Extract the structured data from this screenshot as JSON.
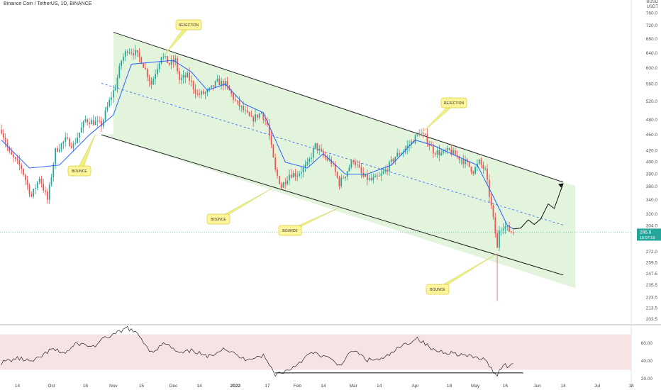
{
  "header": {
    "title": "Binance Coin / TetherUS, 1D, BINANCE",
    "currency_top": "BUSD",
    "currency": "USDT"
  },
  "price_axis": {
    "ticks": [
      "760.0",
      "720.0",
      "680.0",
      "640.0",
      "600.0",
      "560.0",
      "520.0",
      "480.0",
      "450.0",
      "420.0",
      "400.0",
      "380.0",
      "360.0",
      "340.0",
      "320.0",
      "304.0",
      "295.9",
      "272.0",
      "259.5",
      "247.5",
      "235.5",
      "223.5",
      "213.5",
      "203.5"
    ],
    "last_price": "295.9",
    "countdown": "16:07:18",
    "colors": {
      "last_price_bg": "#26a69a",
      "last_price_text": "#ffffff"
    }
  },
  "rsi_axis": {
    "ticks": [
      "60.00",
      "40.00",
      "20.00"
    ]
  },
  "time_axis": {
    "ticks": [
      "14",
      "Oct",
      "18",
      "Nov",
      "15",
      "Dec",
      "14",
      "2022",
      "17",
      "Feb",
      "14",
      "Mar",
      "14",
      "Apr",
      "18",
      "May",
      "16",
      "Jun",
      "14",
      "Jul",
      "18"
    ]
  },
  "annotations": [
    {
      "label": "REJECTION",
      "kind": "rejection"
    },
    {
      "label": "REJECTION",
      "kind": "rejection"
    },
    {
      "label": "BOUNCE",
      "kind": "bounce"
    },
    {
      "label": "BOUNCE",
      "kind": "bounce"
    },
    {
      "label": "BOUNCE",
      "kind": "bounce"
    },
    {
      "label": "BOUNCE",
      "kind": "bounce"
    }
  ],
  "colors": {
    "up": "#26a69a",
    "down": "#ef5350",
    "ma": "#2962ff",
    "channel_fill": "#e3f4dd",
    "rsi_band": "#f6e4e4",
    "label_fill": "#fff59a",
    "label_stroke": "#d8cc40",
    "arrow_fill": "#eef27a"
  },
  "chart_data": {
    "type": "candlestick",
    "symbol": "BNB/USDT",
    "timeframe": "1D",
    "x": {
      "start": "2021-09-06",
      "end": "2022-07-18",
      "ticks": [
        {
          "label": "14",
          "date": "2021-09-14"
        },
        {
          "label": "Oct",
          "date": "2021-10-01"
        },
        {
          "label": "18",
          "date": "2021-10-18"
        },
        {
          "label": "Nov",
          "date": "2021-11-01"
        },
        {
          "label": "15",
          "date": "2021-11-15"
        },
        {
          "label": "Dec",
          "date": "2021-12-01"
        },
        {
          "label": "14",
          "date": "2021-12-14"
        },
        {
          "label": "2022",
          "date": "2022-01-01"
        },
        {
          "label": "17",
          "date": "2022-01-17"
        },
        {
          "label": "Feb",
          "date": "2022-02-01"
        },
        {
          "label": "14",
          "date": "2022-02-14"
        },
        {
          "label": "Mar",
          "date": "2022-03-01"
        },
        {
          "label": "14",
          "date": "2022-03-14"
        },
        {
          "label": "Apr",
          "date": "2022-04-01"
        },
        {
          "label": "18",
          "date": "2022-04-18"
        },
        {
          "label": "May",
          "date": "2022-05-01"
        },
        {
          "label": "16",
          "date": "2022-05-16"
        },
        {
          "label": "Jun",
          "date": "2022-06-01"
        },
        {
          "label": "14",
          "date": "2022-06-14"
        },
        {
          "label": "Jul",
          "date": "2022-07-01"
        },
        {
          "label": "18",
          "date": "2022-07-18"
        }
      ]
    },
    "y_scale": "log",
    "ylim": [
      200,
      790
    ],
    "price_anchors": [
      {
        "date": "2021-09-06",
        "price": 460
      },
      {
        "date": "2021-09-10",
        "price": 415
      },
      {
        "date": "2021-09-16",
        "price": 390
      },
      {
        "date": "2021-09-21",
        "price": 345
      },
      {
        "date": "2021-09-25",
        "price": 375
      },
      {
        "date": "2021-09-29",
        "price": 340
      },
      {
        "date": "2021-10-03",
        "price": 420
      },
      {
        "date": "2021-10-08",
        "price": 440
      },
      {
        "date": "2021-10-12",
        "price": 430
      },
      {
        "date": "2021-10-18",
        "price": 480
      },
      {
        "date": "2021-10-22",
        "price": 475
      },
      {
        "date": "2021-10-26",
        "price": 470
      },
      {
        "date": "2021-10-30",
        "price": 520
      },
      {
        "date": "2021-11-02",
        "price": 555
      },
      {
        "date": "2021-11-05",
        "price": 620
      },
      {
        "date": "2021-11-08",
        "price": 650
      },
      {
        "date": "2021-11-12",
        "price": 640
      },
      {
        "date": "2021-11-15",
        "price": 620
      },
      {
        "date": "2021-11-20",
        "price": 560
      },
      {
        "date": "2021-11-25",
        "price": 635
      },
      {
        "date": "2021-11-29",
        "price": 610
      },
      {
        "date": "2021-12-02",
        "price": 620
      },
      {
        "date": "2021-12-04",
        "price": 570
      },
      {
        "date": "2021-12-08",
        "price": 580
      },
      {
        "date": "2021-12-13",
        "price": 535
      },
      {
        "date": "2021-12-18",
        "price": 540
      },
      {
        "date": "2021-12-23",
        "price": 565
      },
      {
        "date": "2021-12-27",
        "price": 560
      },
      {
        "date": "2022-01-01",
        "price": 520
      },
      {
        "date": "2022-01-05",
        "price": 500
      },
      {
        "date": "2022-01-09",
        "price": 480
      },
      {
        "date": "2022-01-14",
        "price": 495
      },
      {
        "date": "2022-01-17",
        "price": 470
      },
      {
        "date": "2022-01-21",
        "price": 385
      },
      {
        "date": "2022-01-24",
        "price": 360
      },
      {
        "date": "2022-01-28",
        "price": 380
      },
      {
        "date": "2022-02-01",
        "price": 380
      },
      {
        "date": "2022-02-06",
        "price": 395
      },
      {
        "date": "2022-02-10",
        "price": 430
      },
      {
        "date": "2022-02-14",
        "price": 410
      },
      {
        "date": "2022-02-18",
        "price": 400
      },
      {
        "date": "2022-02-22",
        "price": 365
      },
      {
        "date": "2022-02-25",
        "price": 380
      },
      {
        "date": "2022-03-01",
        "price": 405
      },
      {
        "date": "2022-03-06",
        "price": 375
      },
      {
        "date": "2022-03-10",
        "price": 370
      },
      {
        "date": "2022-03-14",
        "price": 375
      },
      {
        "date": "2022-03-18",
        "price": 390
      },
      {
        "date": "2022-03-22",
        "price": 410
      },
      {
        "date": "2022-03-26",
        "price": 420
      },
      {
        "date": "2022-03-31",
        "price": 440
      },
      {
        "date": "2022-04-03",
        "price": 455
      },
      {
        "date": "2022-04-06",
        "price": 445
      },
      {
        "date": "2022-04-10",
        "price": 420
      },
      {
        "date": "2022-04-14",
        "price": 415
      },
      {
        "date": "2022-04-18",
        "price": 420
      },
      {
        "date": "2022-04-22",
        "price": 410
      },
      {
        "date": "2022-04-26",
        "price": 400
      },
      {
        "date": "2022-04-30",
        "price": 385
      },
      {
        "date": "2022-05-03",
        "price": 400
      },
      {
        "date": "2022-05-06",
        "price": 385
      },
      {
        "date": "2022-05-09",
        "price": 330
      },
      {
        "date": "2022-05-11",
        "price": 295
      },
      {
        "date": "2022-05-12",
        "price": 275
      },
      {
        "date": "2022-05-13",
        "price": 300
      },
      {
        "date": "2022-05-15",
        "price": 305
      },
      {
        "date": "2022-05-18",
        "price": 298
      },
      {
        "date": "2022-05-20",
        "price": 295.9
      }
    ],
    "series": [
      {
        "name": "MA",
        "type": "line",
        "values": [
          {
            "date": "2021-09-06",
            "price": 440
          },
          {
            "date": "2021-09-20",
            "price": 390
          },
          {
            "date": "2021-10-05",
            "price": 395
          },
          {
            "date": "2021-10-20",
            "price": 450
          },
          {
            "date": "2021-11-01",
            "price": 490
          },
          {
            "date": "2021-11-10",
            "price": 610
          },
          {
            "date": "2021-11-20",
            "price": 615
          },
          {
            "date": "2021-12-01",
            "price": 620
          },
          {
            "date": "2021-12-10",
            "price": 590
          },
          {
            "date": "2021-12-18",
            "price": 545
          },
          {
            "date": "2021-12-27",
            "price": 560
          },
          {
            "date": "2022-01-05",
            "price": 515
          },
          {
            "date": "2022-01-15",
            "price": 495
          },
          {
            "date": "2022-01-26",
            "price": 400
          },
          {
            "date": "2022-02-06",
            "price": 390
          },
          {
            "date": "2022-02-14",
            "price": 415
          },
          {
            "date": "2022-02-25",
            "price": 380
          },
          {
            "date": "2022-03-08",
            "price": 380
          },
          {
            "date": "2022-03-20",
            "price": 395
          },
          {
            "date": "2022-04-01",
            "price": 440
          },
          {
            "date": "2022-04-10",
            "price": 430
          },
          {
            "date": "2022-04-22",
            "price": 410
          },
          {
            "date": "2022-05-02",
            "price": 395
          },
          {
            "date": "2022-05-10",
            "price": 345
          },
          {
            "date": "2022-05-17",
            "price": 305
          },
          {
            "date": "2022-05-20",
            "price": 300
          }
        ]
      },
      {
        "name": "RSI",
        "type": "line",
        "ylim": [
          20,
          80
        ],
        "values": [
          {
            "date": "2021-09-06",
            "rsi": 38
          },
          {
            "date": "2021-09-14",
            "rsi": 43
          },
          {
            "date": "2021-09-22",
            "rsi": 39
          },
          {
            "date": "2021-10-01",
            "rsi": 53
          },
          {
            "date": "2021-10-08",
            "rsi": 49
          },
          {
            "date": "2021-10-14",
            "rsi": 60
          },
          {
            "date": "2021-10-22",
            "rsi": 56
          },
          {
            "date": "2021-10-28",
            "rsi": 66
          },
          {
            "date": "2021-11-05",
            "rsi": 73
          },
          {
            "date": "2021-11-08",
            "rsi": 78
          },
          {
            "date": "2021-11-14",
            "rsi": 68
          },
          {
            "date": "2021-11-20",
            "rsi": 50
          },
          {
            "date": "2021-11-27",
            "rsi": 60
          },
          {
            "date": "2021-12-04",
            "rsi": 48
          },
          {
            "date": "2021-12-11",
            "rsi": 52
          },
          {
            "date": "2021-12-18",
            "rsi": 44
          },
          {
            "date": "2021-12-26",
            "rsi": 55
          },
          {
            "date": "2022-01-05",
            "rsi": 42
          },
          {
            "date": "2022-01-15",
            "rsi": 46
          },
          {
            "date": "2022-01-21",
            "rsi": 25
          },
          {
            "date": "2022-01-28",
            "rsi": 30
          },
          {
            "date": "2022-02-08",
            "rsi": 49
          },
          {
            "date": "2022-02-15",
            "rsi": 45
          },
          {
            "date": "2022-02-22",
            "rsi": 35
          },
          {
            "date": "2022-03-01",
            "rsi": 52
          },
          {
            "date": "2022-03-08",
            "rsi": 41
          },
          {
            "date": "2022-03-16",
            "rsi": 42
          },
          {
            "date": "2022-03-24",
            "rsi": 55
          },
          {
            "date": "2022-04-02",
            "rsi": 66
          },
          {
            "date": "2022-04-10",
            "rsi": 52
          },
          {
            "date": "2022-04-20",
            "rsi": 49
          },
          {
            "date": "2022-04-28",
            "rsi": 45
          },
          {
            "date": "2022-05-05",
            "rsi": 42
          },
          {
            "date": "2022-05-12",
            "rsi": 24
          },
          {
            "date": "2022-05-15",
            "rsi": 37
          },
          {
            "date": "2022-05-18",
            "rsi": 33
          },
          {
            "date": "2022-05-20",
            "rsi": 37
          }
        ]
      }
    ],
    "rsi_band": [
      30,
      70
    ],
    "drawings": [
      {
        "type": "channel_upper",
        "from": {
          "date": "2021-11-01",
          "price": 700
        },
        "to": {
          "date": "2022-06-14",
          "price": 367
        }
      },
      {
        "type": "channel_lower",
        "from": {
          "date": "2021-10-26",
          "price": 450
        },
        "to": {
          "date": "2022-06-14",
          "price": 246
        }
      },
      {
        "type": "channel_mid",
        "from": {
          "date": "2021-10-26",
          "price": 562
        },
        "to": {
          "date": "2022-06-14",
          "price": 305
        }
      },
      {
        "type": "projection",
        "from": {
          "date": "2022-05-20",
          "price": 300
        },
        "to": {
          "date": "2022-06-14",
          "price": 365
        }
      },
      {
        "type": "rsi_support",
        "from": {
          "date": "2022-01-21",
          "rsi": 26.5
        },
        "to": {
          "date": "2022-05-25",
          "rsi": 26.5
        }
      }
    ]
  }
}
